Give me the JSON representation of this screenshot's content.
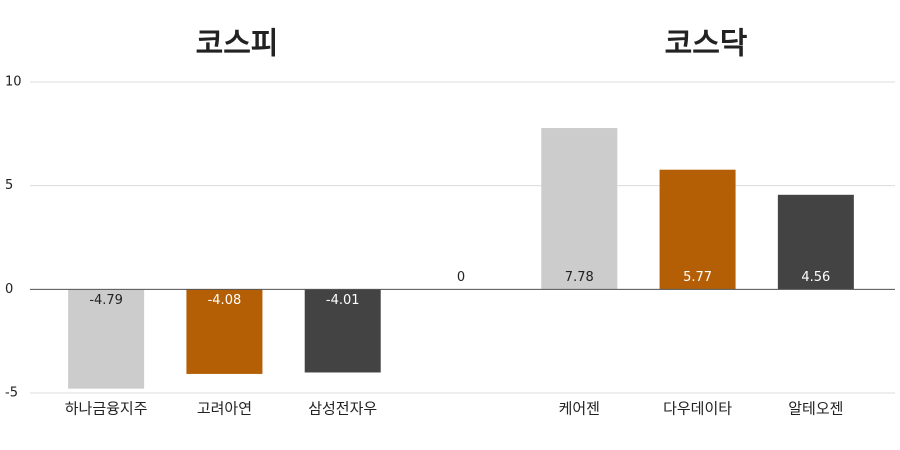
{
  "chart_data": {
    "type": "bar",
    "annotations": [
      "코스피",
      "코스닥"
    ],
    "categories": [
      "하나금융지주",
      "고려아연",
      "삼성전자우",
      null,
      "케어젠",
      "다우데이타",
      "알테오젠"
    ],
    "values": [
      -4.79,
      -4.08,
      -4.01,
      0,
      7.78,
      5.77,
      4.56
    ],
    "colors": [
      "#cccccc",
      "#b45f06",
      "#434343",
      "#cccccc",
      "#cccccc",
      "#b45f06",
      "#434343"
    ],
    "ylim": [
      -5,
      10
    ],
    "yticks": [
      -5,
      0,
      5,
      10
    ],
    "grid": true
  }
}
